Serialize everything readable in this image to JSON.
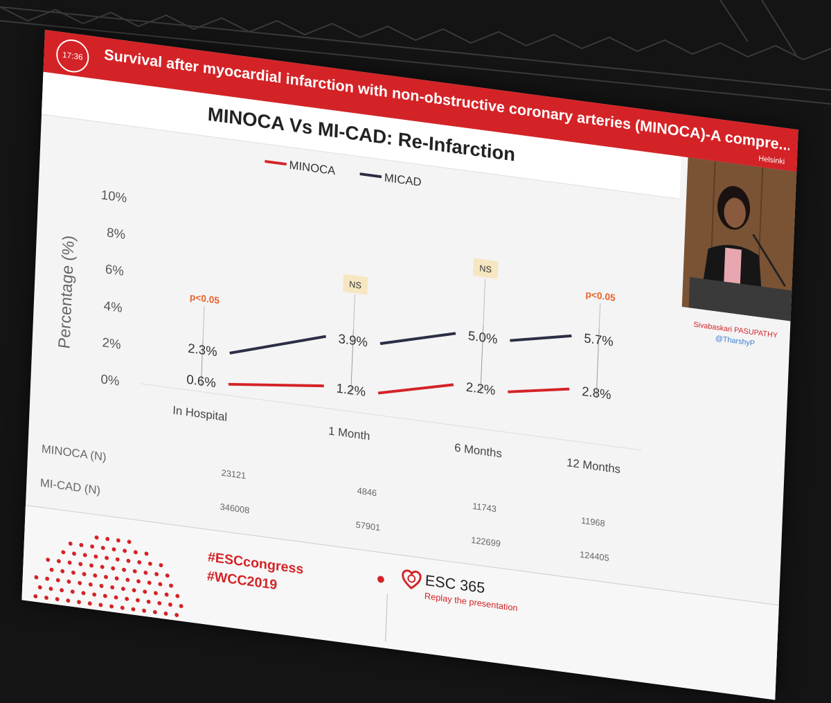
{
  "header": {
    "clock": "17:36",
    "conference_title": "Survival after myocardial infarction with non-obstructive coronary arteries (MINOCA)-A compre...",
    "location": "Helsinki"
  },
  "slide": {
    "title": "MINOCA Vs MI-CAD: Re-Infarction"
  },
  "speaker": {
    "name": "Sivabaskari PASUPATHY",
    "handle": "@TharshyP"
  },
  "chart_data": {
    "type": "line",
    "title": "",
    "xlabel": "",
    "ylabel": "Percentage (%)",
    "categories": [
      "In Hospital",
      "1 Month",
      "6 Months",
      "12 Months"
    ],
    "ylim": [
      0,
      10
    ],
    "yticks": [
      "0%",
      "2%",
      "4%",
      "6%",
      "8%",
      "10%"
    ],
    "legend_position": "top",
    "series": [
      {
        "name": "MINOCA",
        "color": "#d42327",
        "values": [
          0.6,
          1.2,
          2.2,
          2.8
        ],
        "labels": [
          "0.6%",
          "1.2%",
          "2.2%",
          "2.8%"
        ]
      },
      {
        "name": "MICAD",
        "color": "#2b2e45",
        "values": [
          2.3,
          3.9,
          5.0,
          5.7
        ],
        "labels": [
          "2.3%",
          "3.9%",
          "5.0%",
          "5.7%"
        ]
      }
    ],
    "annotations": [
      {
        "category": "In Hospital",
        "text": "p<0.05",
        "style": "red",
        "y": 4.9
      },
      {
        "category": "1 Month",
        "text": "NS",
        "style": "box",
        "y": 6.6
      },
      {
        "category": "6 Months",
        "text": "NS",
        "style": "box",
        "y": 8.4
      },
      {
        "category": "12 Months",
        "text": "p<0.05",
        "style": "red",
        "y": 7.9
      }
    ],
    "grid": false
  },
  "table": {
    "rows": [
      {
        "label": "MINOCA (N)",
        "values": [
          "23121",
          "4846",
          "11743",
          "11968"
        ]
      },
      {
        "label": "MI-CAD (N)",
        "values": [
          "346008",
          "57901",
          "122699",
          "124405"
        ]
      }
    ]
  },
  "footer": {
    "hashtag1": "#ESCcongress",
    "hashtag2": "#WCC2019",
    "esc_brand": "ESC 365",
    "esc_tagline": "Replay the presentation"
  }
}
